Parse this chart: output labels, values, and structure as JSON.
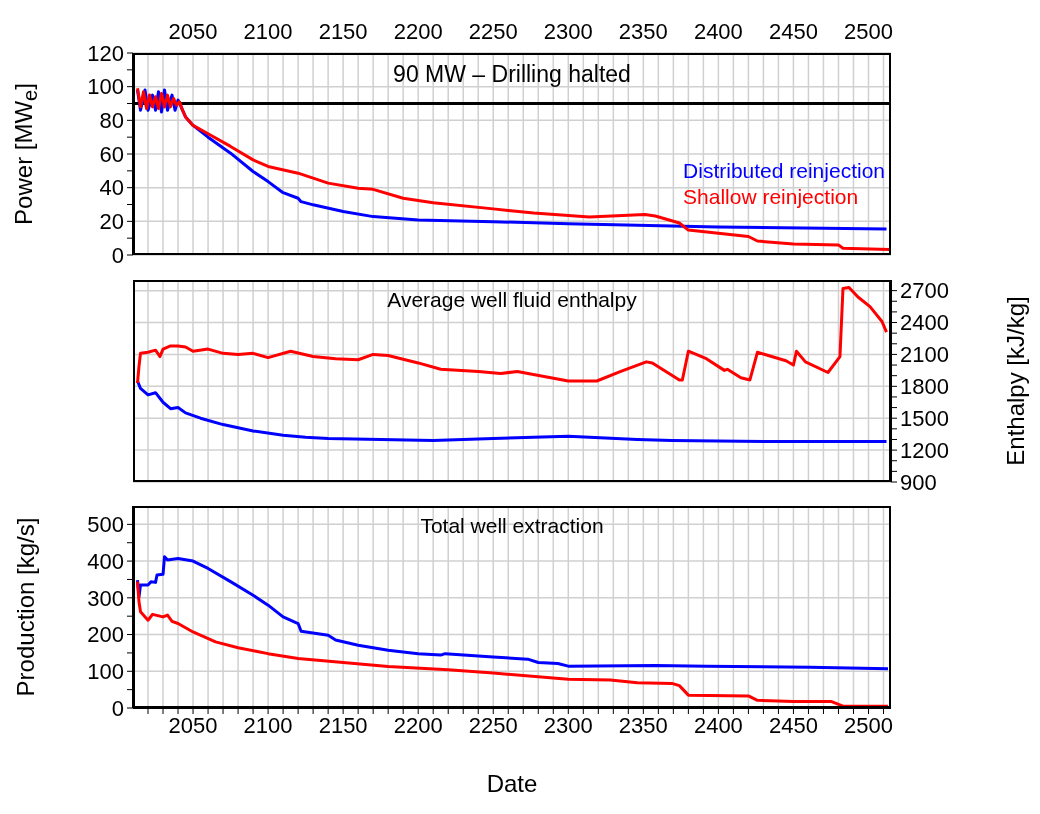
{
  "chart_data": [
    {
      "type": "line",
      "title": "90 MW – Drilling halted",
      "ylabel": "Power [MW$_{e}$]",
      "grid": true,
      "tick_labels": "y",
      "xlim": [
        2010,
        2515
      ],
      "xticks": [
        {
          "value": 2020,
          "label": null
        },
        {
          "value": 2030,
          "label": null
        },
        {
          "value": 2040,
          "label": null
        },
        2050,
        {
          "value": 2060,
          "label": null
        },
        {
          "value": 2070,
          "label": null
        },
        {
          "value": 2080,
          "label": null
        },
        {
          "value": 2090,
          "label": null
        },
        2100,
        {
          "value": 2110,
          "label": null
        },
        {
          "value": 2120,
          "label": null
        },
        {
          "value": 2130,
          "label": null
        },
        {
          "value": 2140,
          "label": null
        },
        2150,
        {
          "value": 2160,
          "label": null
        },
        {
          "value": 2170,
          "label": null
        },
        {
          "value": 2180,
          "label": null
        },
        {
          "value": 2190,
          "label": null
        },
        2200,
        {
          "value": 2210,
          "label": null
        },
        {
          "value": 2220,
          "label": null
        },
        {
          "value": 2230,
          "label": null
        },
        {
          "value": 2240,
          "label": null
        },
        2250,
        {
          "value": 2260,
          "label": null
        },
        {
          "value": 2270,
          "label": null
        },
        {
          "value": 2280,
          "label": null
        },
        {
          "value": 2290,
          "label": null
        },
        2300,
        {
          "value": 2310,
          "label": null
        },
        {
          "value": 2320,
          "label": null
        },
        {
          "value": 2330,
          "label": null
        },
        {
          "value": 2340,
          "label": null
        },
        2350,
        {
          "value": 2360,
          "label": null
        },
        {
          "value": 2370,
          "label": null
        },
        {
          "value": 2380,
          "label": null
        },
        {
          "value": 2390,
          "label": null
        },
        2400,
        {
          "value": 2410,
          "label": null
        },
        {
          "value": 2420,
          "label": null
        },
        {
          "value": 2430,
          "label": null
        },
        {
          "value": 2440,
          "label": null
        },
        2450,
        {
          "value": 2460,
          "label": null
        },
        {
          "value": 2470,
          "label": null
        },
        {
          "value": 2480,
          "label": null
        },
        {
          "value": 2490,
          "label": null
        },
        2500,
        {
          "value": 2510,
          "label": null
        }
      ],
      "x2lim": [
        2010,
        2515
      ],
      "x2ticks": [
        2050,
        2100,
        2150,
        2200,
        2250,
        2300,
        2350,
        2400,
        2450,
        2500
      ],
      "ylim": [
        0,
        120
      ],
      "yticks": [
        0,
        {
          "value": 10,
          "label": null
        },
        20,
        {
          "value": 30,
          "label": null
        },
        40,
        {
          "value": 50,
          "label": null
        },
        60,
        {
          "value": 70,
          "label": null
        },
        80,
        {
          "value": 90,
          "label": null
        },
        100,
        {
          "value": 110,
          "label": null
        },
        120
      ],
      "ref_lines": [
        {
          "axis": "y",
          "value": 90,
          "color": "#000000"
        }
      ],
      "series": [
        {
          "name": "Distributed reinjection",
          "color": "#0000ff",
          "x": [
            2013,
            2015,
            2018,
            2020,
            2023,
            2025,
            2027,
            2029,
            2031,
            2033,
            2036,
            2038,
            2040,
            2043,
            2045,
            2050,
            2060,
            2075,
            2090,
            2100,
            2110,
            2120,
            2122,
            2130,
            2150,
            2170,
            2200,
            2250,
            2300,
            2400,
            2512
          ],
          "values": [
            98,
            86,
            98,
            86,
            95,
            86,
            97,
            85,
            98,
            86,
            95,
            86,
            92,
            86,
            82,
            77,
            70,
            60.5,
            49.6,
            43.6,
            37,
            33.7,
            31.7,
            29.8,
            25.8,
            22.8,
            20.8,
            19.8,
            18.5,
            16.7,
            15.5
          ]
        },
        {
          "name": "Shallow reinjection",
          "color": "#ff0000",
          "x": [
            2013,
            2015,
            2017,
            2019,
            2021,
            2023,
            2025,
            2027,
            2029,
            2031,
            2033,
            2035,
            2037,
            2039,
            2041,
            2043,
            2045,
            2050,
            2060,
            2075,
            2090,
            2100,
            2120,
            2140,
            2160,
            2170,
            2190,
            2210,
            2250,
            2260,
            2277,
            2314,
            2351,
            2358,
            2374,
            2380,
            2420,
            2426,
            2450,
            2480,
            2483,
            2514
          ],
          "values": [
            99,
            88,
            97,
            87,
            95,
            88,
            94,
            87,
            96,
            88,
            95,
            88,
            93,
            89,
            91,
            86,
            82,
            77,
            72,
            64.5,
            56.5,
            52.6,
            48.6,
            42.7,
            39.7,
            39,
            33.7,
            31,
            27.4,
            26.5,
            25,
            22.6,
            24,
            23.2,
            19,
            14.8,
            11,
            8.3,
            6.5,
            6,
            4,
            3.2
          ]
        }
      ]
    },
    {
      "type": "line",
      "title": "Average well fluid enthalpy",
      "y2label": "Enthalpy [kJ/kg]",
      "grid": true,
      "tick_labels": "y",
      "xlim": [
        2010,
        2515
      ],
      "xticks": [
        {
          "value": 2020,
          "label": null
        },
        {
          "value": 2030,
          "label": null
        },
        {
          "value": 2040,
          "label": null
        },
        {
          "value": 2050,
          "label": null
        },
        {
          "value": 2060,
          "label": null
        },
        {
          "value": 2070,
          "label": null
        },
        {
          "value": 2080,
          "label": null
        },
        {
          "value": 2090,
          "label": null
        },
        {
          "value": 2100,
          "label": null
        },
        {
          "value": 2110,
          "label": null
        },
        {
          "value": 2120,
          "label": null
        },
        {
          "value": 2130,
          "label": null
        },
        {
          "value": 2140,
          "label": null
        },
        {
          "value": 2150,
          "label": null
        },
        {
          "value": 2160,
          "label": null
        },
        {
          "value": 2170,
          "label": null
        },
        {
          "value": 2180,
          "label": null
        },
        {
          "value": 2190,
          "label": null
        },
        {
          "value": 2200,
          "label": null
        },
        {
          "value": 2210,
          "label": null
        },
        {
          "value": 2220,
          "label": null
        },
        {
          "value": 2230,
          "label": null
        },
        {
          "value": 2240,
          "label": null
        },
        {
          "value": 2250,
          "label": null
        },
        {
          "value": 2260,
          "label": null
        },
        {
          "value": 2270,
          "label": null
        },
        {
          "value": 2280,
          "label": null
        },
        {
          "value": 2290,
          "label": null
        },
        {
          "value": 2300,
          "label": null
        },
        {
          "value": 2310,
          "label": null
        },
        {
          "value": 2320,
          "label": null
        },
        {
          "value": 2330,
          "label": null
        },
        {
          "value": 2340,
          "label": null
        },
        {
          "value": 2350,
          "label": null
        },
        {
          "value": 2360,
          "label": null
        },
        {
          "value": 2370,
          "label": null
        },
        {
          "value": 2380,
          "label": null
        },
        {
          "value": 2390,
          "label": null
        },
        {
          "value": 2400,
          "label": null
        },
        {
          "value": 2410,
          "label": null
        },
        {
          "value": 2420,
          "label": null
        },
        {
          "value": 2430,
          "label": null
        },
        {
          "value": 2440,
          "label": null
        },
        {
          "value": 2450,
          "label": null
        },
        {
          "value": 2460,
          "label": null
        },
        {
          "value": 2470,
          "label": null
        },
        {
          "value": 2480,
          "label": null
        },
        {
          "value": 2490,
          "label": null
        },
        {
          "value": 2500,
          "label": null
        },
        {
          "value": 2510,
          "label": null
        }
      ],
      "y2lim": [
        900,
        2800
      ],
      "y2ticks": [
        900,
        {
          "value": 1000,
          "label": null
        },
        {
          "value": 1100,
          "label": null
        },
        1200,
        {
          "value": 1300,
          "label": null
        },
        {
          "value": 1400,
          "label": null
        },
        1500,
        {
          "value": 1600,
          "label": null
        },
        {
          "value": 1700,
          "label": null
        },
        1800,
        {
          "value": 1900,
          "label": null
        },
        {
          "value": 2000,
          "label": null
        },
        2100,
        {
          "value": 2200,
          "label": null
        },
        {
          "value": 2300,
          "label": null
        },
        2400,
        {
          "value": 2500,
          "label": null
        },
        {
          "value": 2600,
          "label": null
        },
        2700
      ],
      "series": [
        {
          "color": "#0000ff",
          "axis": "y2",
          "x": [
            2013,
            2015,
            2020,
            2025,
            2030,
            2035,
            2040,
            2045,
            2055,
            2070,
            2090,
            2110,
            2125,
            2140,
            2175,
            2210,
            2250,
            2277,
            2300,
            2346,
            2369,
            2438,
            2512
          ],
          "values": [
            1850,
            1780,
            1720,
            1740,
            1650,
            1590,
            1600,
            1550,
            1500,
            1440,
            1380,
            1340,
            1320,
            1310,
            1300,
            1290,
            1310,
            1320,
            1330,
            1300,
            1290,
            1280,
            1280
          ]
        },
        {
          "color": "#ff0000",
          "axis": "y2",
          "x": [
            2013,
            2014,
            2015,
            2020,
            2025,
            2028,
            2030,
            2035,
            2040,
            2045,
            2050,
            2060,
            2070,
            2080,
            2090,
            2100,
            2115,
            2130,
            2145,
            2160,
            2170,
            2180,
            2200,
            2215,
            2240,
            2255,
            2266,
            2300,
            2319,
            2335,
            2352,
            2356,
            2374,
            2376,
            2380,
            2392,
            2404,
            2406,
            2415,
            2421,
            2426,
            2445,
            2450,
            2452,
            2458,
            2473,
            2481,
            2483,
            2487,
            2493,
            2501,
            2509,
            2512
          ],
          "values": [
            1830,
            1990,
            2110,
            2120,
            2140,
            2080,
            2150,
            2180,
            2180,
            2170,
            2130,
            2150,
            2110,
            2100,
            2110,
            2070,
            2130,
            2080,
            2060,
            2050,
            2100,
            2090,
            2020,
            1960,
            1940,
            1920,
            1940,
            1850,
            1850,
            1940,
            2030,
            2020,
            1860,
            1860,
            2130,
            2060,
            1950,
            1960,
            1880,
            1860,
            2120,
            2040,
            2000,
            2130,
            2030,
            1930,
            2080,
            2720,
            2730,
            2640,
            2550,
            2410,
            2310
          ]
        }
      ]
    },
    {
      "type": "line",
      "title": "Total well extraction",
      "xlabel": "Date",
      "ylabel": "Production [kg/s]",
      "grid": true,
      "xlim": [
        2010,
        2515
      ],
      "xticks": [
        {
          "value": 2020,
          "label": null
        },
        {
          "value": 2030,
          "label": null
        },
        {
          "value": 2040,
          "label": null
        },
        2050,
        {
          "value": 2060,
          "label": null
        },
        {
          "value": 2070,
          "label": null
        },
        {
          "value": 2080,
          "label": null
        },
        {
          "value": 2090,
          "label": null
        },
        2100,
        {
          "value": 2110,
          "label": null
        },
        {
          "value": 2120,
          "label": null
        },
        {
          "value": 2130,
          "label": null
        },
        {
          "value": 2140,
          "label": null
        },
        2150,
        {
          "value": 2160,
          "label": null
        },
        {
          "value": 2170,
          "label": null
        },
        {
          "value": 2180,
          "label": null
        },
        {
          "value": 2190,
          "label": null
        },
        2200,
        {
          "value": 2210,
          "label": null
        },
        {
          "value": 2220,
          "label": null
        },
        {
          "value": 2230,
          "label": null
        },
        {
          "value": 2240,
          "label": null
        },
        2250,
        {
          "value": 2260,
          "label": null
        },
        {
          "value": 2270,
          "label": null
        },
        {
          "value": 2280,
          "label": null
        },
        {
          "value": 2290,
          "label": null
        },
        2300,
        {
          "value": 2310,
          "label": null
        },
        {
          "value": 2320,
          "label": null
        },
        {
          "value": 2330,
          "label": null
        },
        {
          "value": 2340,
          "label": null
        },
        2350,
        {
          "value": 2360,
          "label": null
        },
        {
          "value": 2370,
          "label": null
        },
        {
          "value": 2380,
          "label": null
        },
        {
          "value": 2390,
          "label": null
        },
        2400,
        {
          "value": 2410,
          "label": null
        },
        {
          "value": 2420,
          "label": null
        },
        {
          "value": 2430,
          "label": null
        },
        {
          "value": 2440,
          "label": null
        },
        2450,
        {
          "value": 2460,
          "label": null
        },
        {
          "value": 2470,
          "label": null
        },
        {
          "value": 2480,
          "label": null
        },
        {
          "value": 2490,
          "label": null
        },
        2500,
        {
          "value": 2510,
          "label": null
        }
      ],
      "ylim": [
        0,
        550
      ],
      "yticks": [
        0,
        {
          "value": 50,
          "label": null
        },
        100,
        {
          "value": 150,
          "label": null
        },
        200,
        {
          "value": 250,
          "label": null
        },
        300,
        {
          "value": 350,
          "label": null
        },
        400,
        {
          "value": 450,
          "label": null
        },
        500
      ],
      "series": [
        {
          "color": "#0000ff",
          "x": [
            2013,
            2014,
            2015,
            2020,
            2022,
            2025,
            2026,
            2030,
            2031,
            2033,
            2040,
            2050,
            2060,
            2075,
            2090,
            2100,
            2110,
            2120,
            2122,
            2140,
            2145,
            2160,
            2180,
            2200,
            2215,
            2218,
            2250,
            2273,
            2280,
            2293,
            2300,
            2358,
            2392,
            2461,
            2513
          ],
          "values": [
            348,
            303,
            335,
            335,
            344,
            342,
            362,
            364,
            412,
            403,
            407,
            400,
            380,
            344,
            307,
            280,
            248,
            230,
            209,
            198,
            185,
            171,
            157,
            148,
            144,
            148,
            139,
            133,
            124,
            121,
            114,
            116,
            114,
            111,
            107
          ]
        },
        {
          "color": "#ff0000",
          "x": [
            2013,
            2014,
            2015,
            2020,
            2023,
            2030,
            2033,
            2036,
            2040,
            2050,
            2065,
            2080,
            2100,
            2120,
            2150,
            2180,
            2220,
            2250,
            2300,
            2328,
            2346,
            2369,
            2374,
            2380,
            2420,
            2426,
            2450,
            2475,
            2483,
            2513
          ],
          "values": [
            344,
            289,
            262,
            239,
            255,
            248,
            253,
            236,
            230,
            207,
            180,
            164,
            148,
            135,
            124,
            113,
            104,
            95,
            78,
            76,
            69,
            67,
            61,
            35,
            33,
            21,
            18,
            18,
            5,
            5
          ]
        }
      ]
    }
  ]
}
